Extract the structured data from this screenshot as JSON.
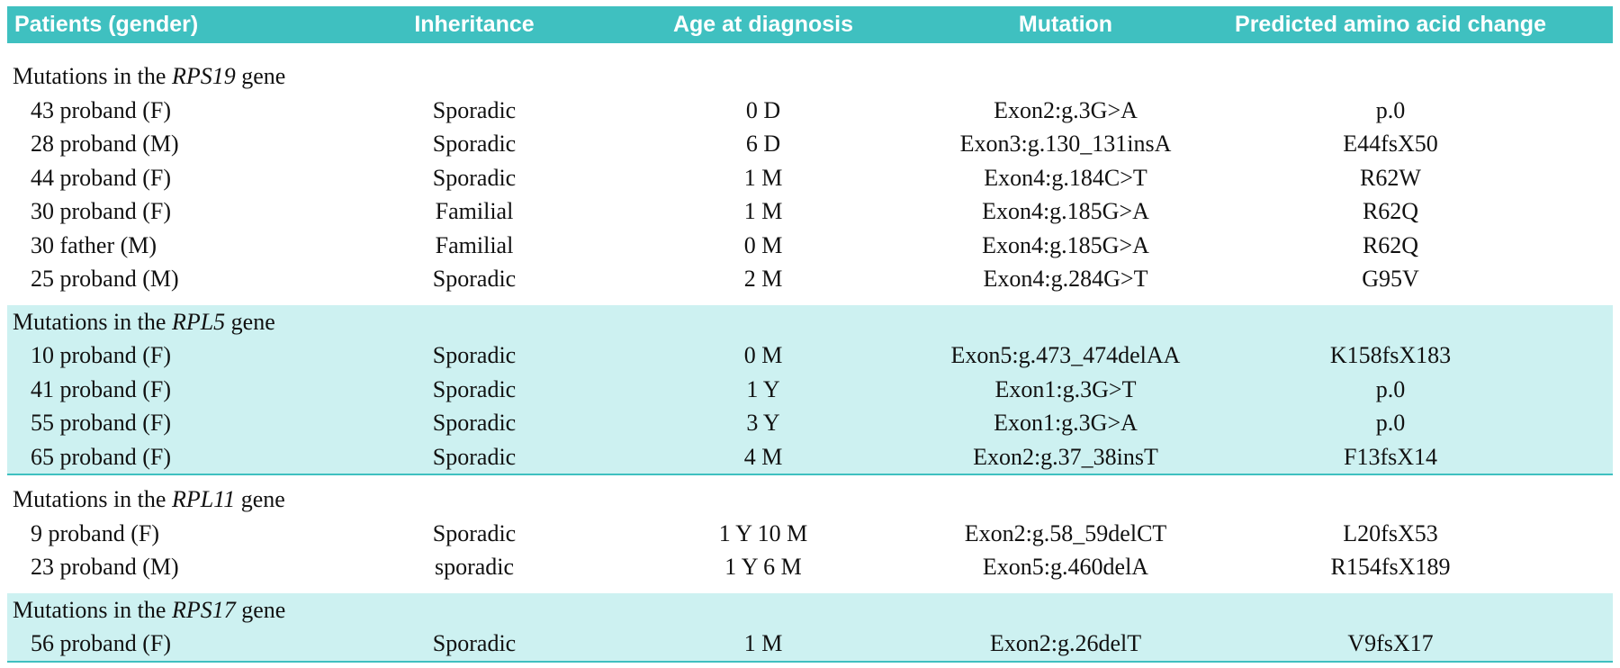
{
  "header": {
    "columns": [
      "Patients (gender)",
      "Inheritance",
      "Age at diagnosis",
      "Mutation",
      "Predicted amino acid change"
    ]
  },
  "groups": [
    {
      "title_prefix": "Mutations in the",
      "gene": "RPS19",
      "title_suffix": "gene",
      "rows": [
        [
          "43 proband (F)",
          "Sporadic",
          "0 D",
          "Exon2:g.3G>A",
          "p.0"
        ],
        [
          "28 proband (M)",
          "Sporadic",
          "6 D",
          "Exon3:g.130_131insA",
          "E44fsX50"
        ],
        [
          "44 proband (F)",
          "Sporadic",
          "1 M",
          "Exon4:g.184C>T",
          "R62W"
        ],
        [
          "30 proband (F)",
          "Familial",
          "1 M",
          "Exon4:g.185G>A",
          "R62Q"
        ],
        [
          "30 father (M)",
          "Familial",
          "0 M",
          "Exon4:g.185G>A",
          "R62Q"
        ],
        [
          "25 proband (M)",
          "Sporadic",
          "2 M",
          "Exon4:g.284G>T",
          "G95V"
        ]
      ]
    },
    {
      "title_prefix": "Mutations in the",
      "gene": "RPL5",
      "title_suffix": "gene",
      "rows": [
        [
          "10 proband (F)",
          "Sporadic",
          "0 M",
          "Exon5:g.473_474delAA",
          "K158fsX183"
        ],
        [
          "41 proband (F)",
          "Sporadic",
          "1 Y",
          "Exon1:g.3G>T",
          "p.0"
        ],
        [
          "55 proband (F)",
          "Sporadic",
          "3 Y",
          "Exon1:g.3G>A",
          "p.0"
        ],
        [
          "65 proband (F)",
          "Sporadic",
          "4 M",
          "Exon2:g.37_38insT",
          "F13fsX14"
        ]
      ]
    },
    {
      "title_prefix": "Mutations in the",
      "gene": "RPL11",
      "title_suffix": "gene",
      "rows": [
        [
          "9 proband (F)",
          "Sporadic",
          "1 Y 10 M",
          "Exon2:g.58_59delCT",
          "L20fsX53"
        ],
        [
          "23 proband (M)",
          "sporadic",
          "1 Y 6 M",
          "Exon5:g.460delA",
          "R154fsX189"
        ]
      ]
    },
    {
      "title_prefix": "Mutations in the",
      "gene": "RPS17",
      "title_suffix": "gene",
      "rows": [
        [
          "56 proband (F)",
          "Sporadic",
          "1 M",
          "Exon2:g.26delT",
          "V9fsX17"
        ]
      ]
    }
  ]
}
